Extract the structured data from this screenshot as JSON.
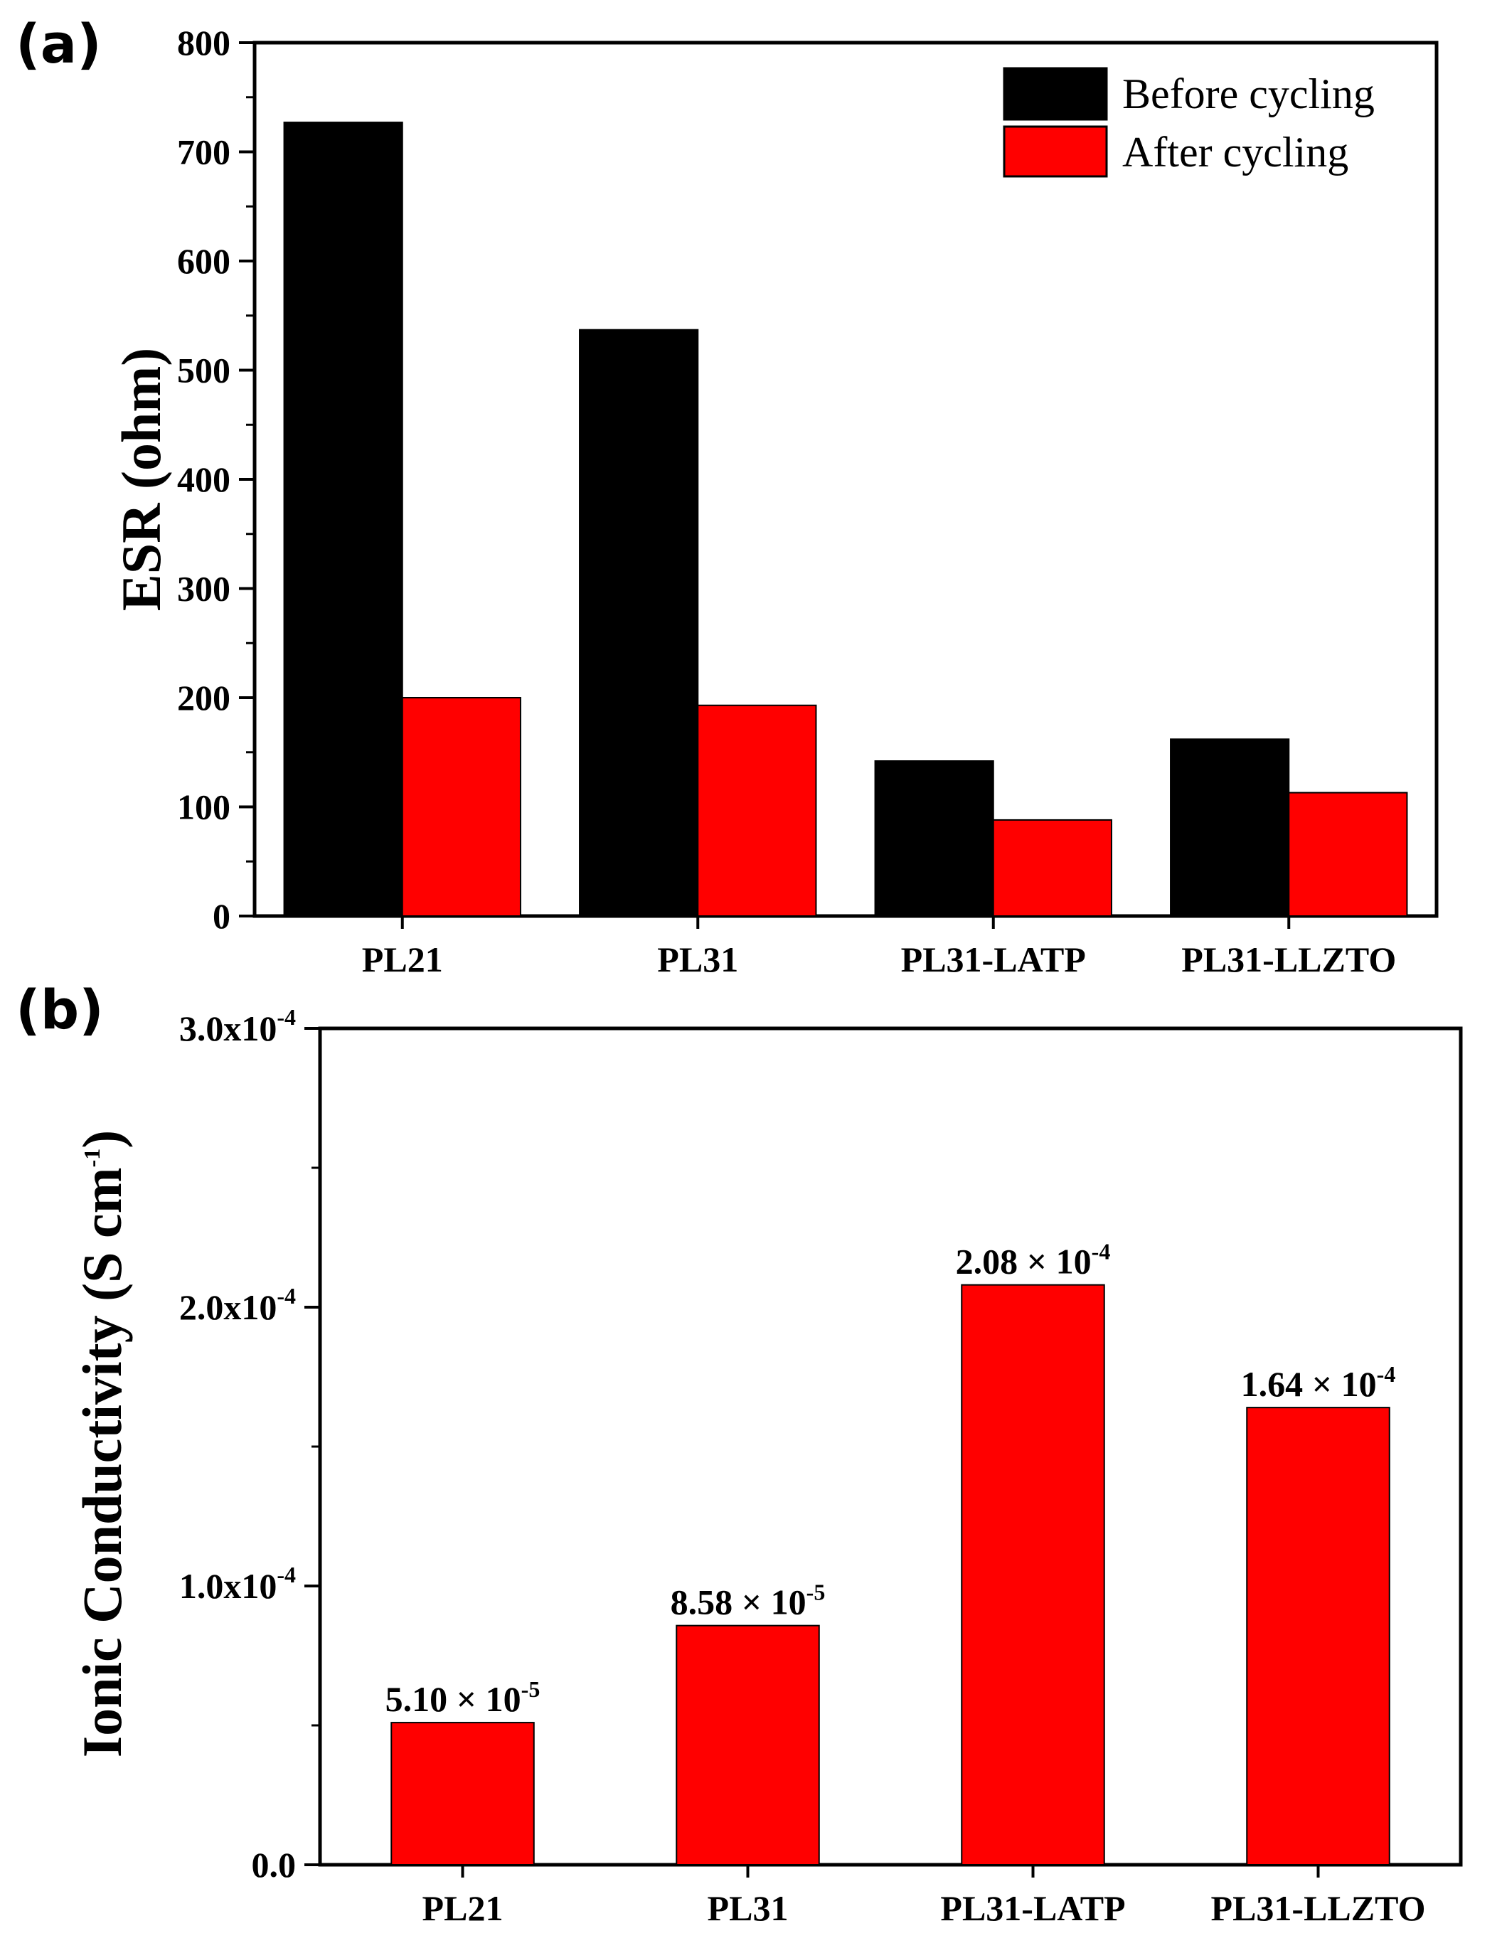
{
  "chart_data": [
    {
      "panel": "(a)",
      "type": "bar",
      "ylabel": "ESR (ohm)",
      "xlabel": "",
      "categories": [
        "PL21",
        "PL31",
        "PL31-LATP",
        "PL31-LLZTO"
      ],
      "series": [
        {
          "name": "Before cycling",
          "color": "#000000",
          "values": [
            727,
            537,
            142,
            162
          ]
        },
        {
          "name": "After cycling",
          "color": "#ff0000",
          "values": [
            200,
            193,
            88,
            113
          ]
        }
      ],
      "ylim": [
        0,
        800
      ],
      "yticks": [
        "0",
        "100",
        "200",
        "300",
        "400",
        "500",
        "600",
        "700",
        "800"
      ],
      "legend_position": "top-right"
    },
    {
      "panel": "(b)",
      "type": "bar",
      "ylabel": "Ionic Conductivity (S cm",
      "ylabel_sup": "-1",
      "ylabel_close": ")",
      "xlabel": "",
      "categories": [
        "PL21",
        "PL31",
        "PL31-LATP",
        "PL31-LLZTO"
      ],
      "series": [
        {
          "name": "Ionic conductivity",
          "color": "#ff0000",
          "values": [
            5.1e-05,
            8.58e-05,
            0.000208,
            0.000164
          ]
        }
      ],
      "data_labels": [
        {
          "mantissa": "5.10",
          "times": " × 10",
          "exp": "-5"
        },
        {
          "mantissa": "8.58",
          "times": " × 10",
          "exp": "-5"
        },
        {
          "mantissa": "2.08",
          "times": " × 10",
          "exp": "-4"
        },
        {
          "mantissa": "1.64",
          "times": " × 10",
          "exp": "-4"
        }
      ],
      "ylim": [
        0,
        0.0003
      ],
      "yticks": [
        {
          "value": 0,
          "base": "0.0",
          "exp": ""
        },
        {
          "value": 0.0001,
          "base": "1.0x10",
          "exp": "-4"
        },
        {
          "value": 0.0002,
          "base": "2.0x10",
          "exp": "-4"
        },
        {
          "value": 0.0003,
          "base": "3.0x10",
          "exp": "-4"
        }
      ]
    }
  ]
}
